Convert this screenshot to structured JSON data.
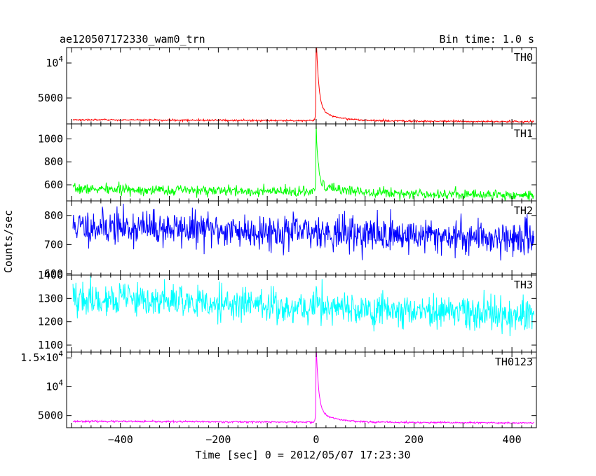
{
  "chart_data": {
    "type": "line",
    "title": "ae120507172330_wam0_trn",
    "bin_time_label": "Bin time: 1.0 s",
    "xlabel": "Time [sec] 0 = 2012/05/07 17:23:30",
    "ylabel": "Counts/sec",
    "xlim": [
      -510,
      450
    ],
    "x_ticks": [
      -400,
      -200,
      0,
      200,
      400
    ],
    "x_tick_labels": [
      "−400",
      "−200",
      "0",
      "200",
      "400"
    ],
    "grid": false,
    "panels": [
      {
        "name": "TH0",
        "color": "#ff0000",
        "ylim": [
          1300,
          12200
        ],
        "y_ticks": [
          5000,
          10000
        ],
        "y_tick_labels": [
          {
            "base": "5000",
            "sup": ""
          },
          {
            "base": "10",
            "sup": "4"
          }
        ],
        "model": {
          "baseline": 1750,
          "slope": -0.3,
          "noise": 60,
          "peak": 10500,
          "tau": 5,
          "tail": 1800,
          "tail_tau": 35,
          "seed": 3
        }
      },
      {
        "name": "TH1",
        "color": "#00ff00",
        "ylim": [
          460,
          1130
        ],
        "y_ticks": [
          600,
          800,
          1000
        ],
        "y_tick_labels": [
          {
            "base": "600",
            "sup": ""
          },
          {
            "base": "800",
            "sup": ""
          },
          {
            "base": "1000",
            "sup": ""
          }
        ],
        "model": {
          "baseline": 535,
          "slope": -0.06,
          "noise": 22,
          "peak": 530,
          "tau": 4,
          "tail": 60,
          "tail_tau": 60,
          "seed": 7
        }
      },
      {
        "name": "TH2",
        "color": "#0000ff",
        "ylim": [
          595,
          850
        ],
        "y_ticks": [
          600,
          700,
          800
        ],
        "y_tick_labels": [
          {
            "base": "600",
            "sup": ""
          },
          {
            "base": "700",
            "sup": ""
          },
          {
            "base": "800",
            "sup": ""
          }
        ],
        "model": {
          "baseline": 741,
          "slope": -0.045,
          "noise": 30,
          "peak": 30,
          "tau": 6,
          "tail": 0,
          "tail_tau": 1,
          "seed": 11
        }
      },
      {
        "name": "TH3",
        "color": "#00ffff",
        "ylim": [
          1070,
          1400
        ],
        "y_ticks": [
          1100,
          1200,
          1300,
          1400
        ],
        "y_tick_labels": [
          {
            "base": "1100",
            "sup": ""
          },
          {
            "base": "1200",
            "sup": ""
          },
          {
            "base": "1300",
            "sup": ""
          },
          {
            "base": "1400",
            "sup": ""
          }
        ],
        "model": {
          "baseline": 1262,
          "slope": -0.08,
          "noise": 36,
          "peak": 45,
          "tau": 6,
          "tail": 0,
          "tail_tau": 1,
          "seed": 19
        }
      },
      {
        "name": "TH0123",
        "color": "#ff00ff",
        "ylim": [
          2900,
          16000
        ],
        "y_ticks": [
          5000,
          10000,
          15000
        ],
        "y_tick_labels": [
          {
            "base": "5000",
            "sup": ""
          },
          {
            "base": "10",
            "sup": "4"
          },
          {
            "base": "1.5×10",
            "sup": "4"
          }
        ],
        "model": {
          "baseline": 3860,
          "slope": -0.3,
          "noise": 75,
          "peak": 11500,
          "tau": 5,
          "tail": 1900,
          "tail_tau": 35,
          "seed": 23
        }
      }
    ]
  }
}
